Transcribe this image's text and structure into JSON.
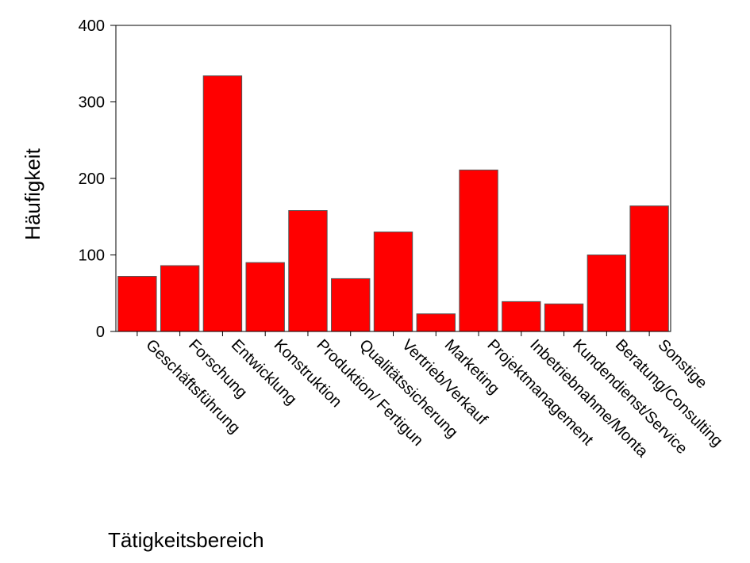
{
  "chart_data": {
    "type": "bar",
    "title": "",
    "xlabel": "Tätigkeitsbereich",
    "ylabel": "Häufigkeit",
    "ylim": [
      0,
      400
    ],
    "yticks": [
      0,
      100,
      200,
      300,
      400
    ],
    "grid": false,
    "bar_color": "#ff0000",
    "categories": [
      "Geschäftsführung",
      "Forschung",
      "Entwicklung",
      "Konstruktion",
      "Produktion/ Fertigun",
      "Qualitätssicherung",
      "Vertrieb/Verkauf",
      "Marketing",
      "Projektmanagement",
      "Inbetriebnahme/Monta",
      "Kundendienst/Service",
      "Beratung/Consulting",
      "Sonstige"
    ],
    "values": [
      72,
      86,
      334,
      90,
      158,
      69,
      130,
      23,
      211,
      39,
      36,
      100,
      164
    ]
  }
}
